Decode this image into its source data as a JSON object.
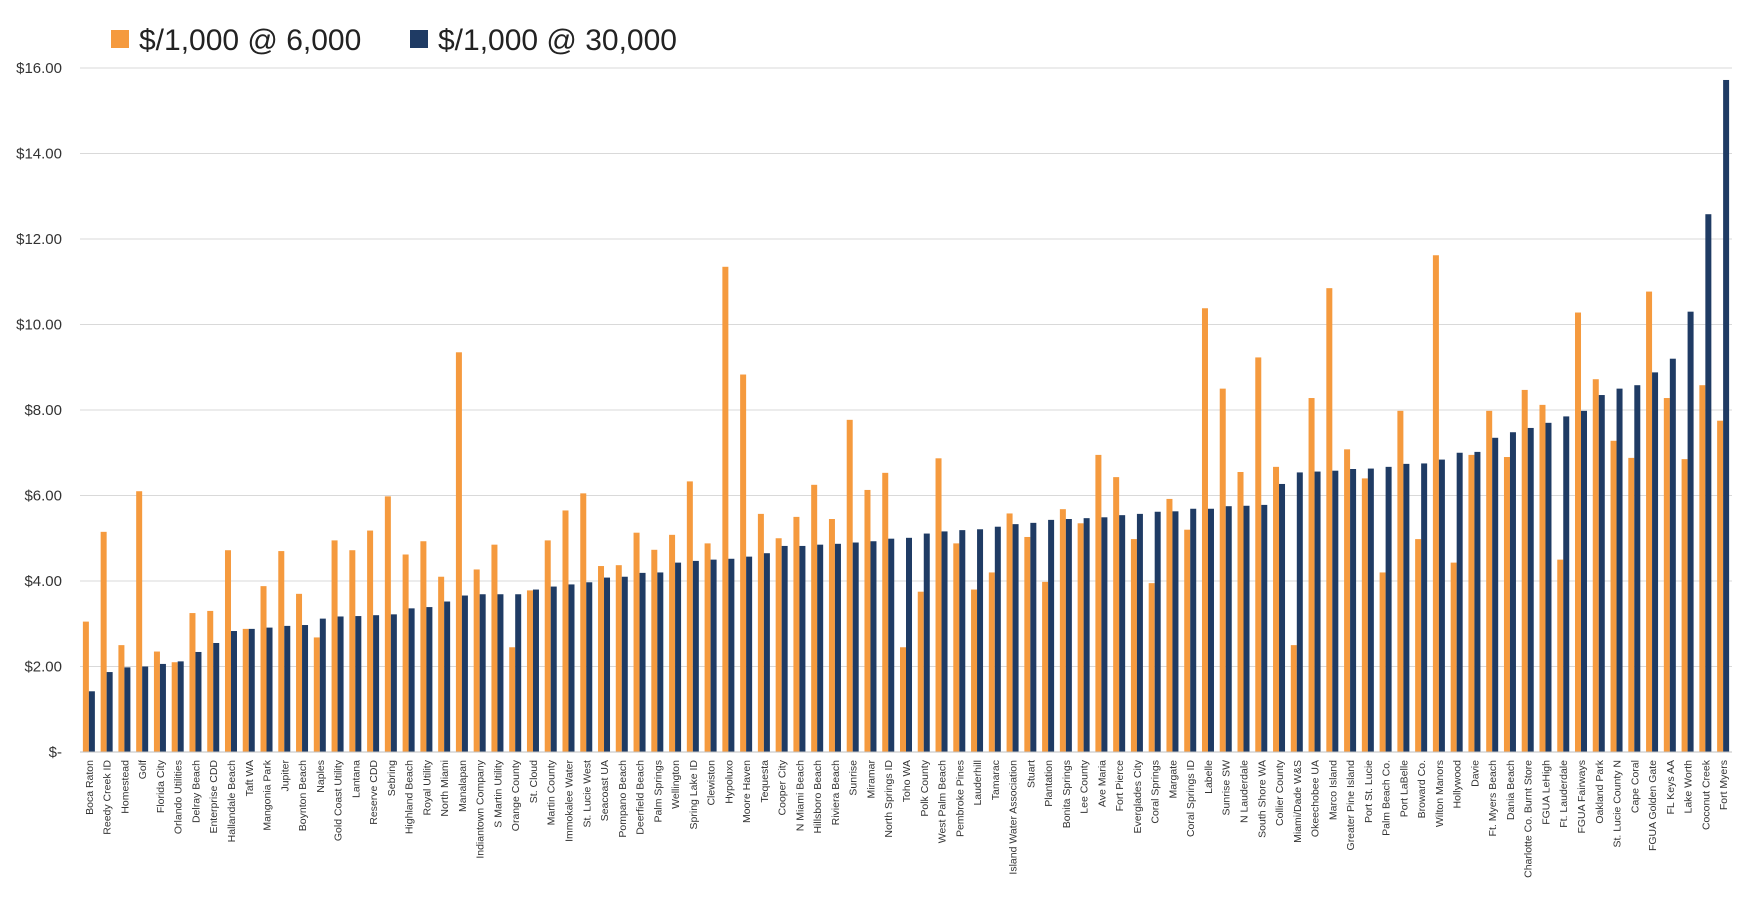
{
  "chart_data": {
    "type": "bar",
    "series": [
      {
        "name": "$/1,000 @ 6,000",
        "color": "#F59A3E",
        "values": [
          3.05,
          5.15,
          2.5,
          6.1,
          2.35,
          2.1,
          3.25,
          3.3,
          4.72,
          2.88,
          3.88,
          4.7,
          3.7,
          2.68,
          4.95,
          4.72,
          5.18,
          5.98,
          4.62,
          4.93,
          4.1,
          9.35,
          4.27,
          4.85,
          2.45,
          3.78,
          4.95,
          5.65,
          6.05,
          4.35,
          4.37,
          5.13,
          4.73,
          5.08,
          6.33,
          4.88,
          11.35,
          8.83,
          5.57,
          5.0,
          5.5,
          6.25,
          5.45,
          7.77,
          6.13,
          6.53,
          2.45,
          3.75,
          6.87,
          4.88,
          3.8,
          4.2,
          5.58,
          5.03,
          3.98,
          5.68,
          5.35,
          6.95,
          6.43,
          4.98,
          3.95,
          5.92,
          5.2,
          10.38,
          8.5,
          6.55,
          9.23,
          6.67,
          2.5,
          8.28,
          10.85,
          7.08,
          6.4,
          4.2,
          7.98,
          4.98,
          11.62,
          4.43,
          6.95,
          7.98,
          6.9,
          8.47,
          8.12,
          4.5,
          10.28,
          8.72,
          7.28,
          6.88,
          10.77,
          8.28,
          6.85,
          8.58,
          7.75
        ]
      },
      {
        "name": "$/1,000 @ 30,000",
        "color": "#1F3B64",
        "values": [
          1.42,
          1.87,
          1.98,
          2.0,
          2.06,
          2.12,
          2.34,
          2.55,
          2.83,
          2.88,
          2.91,
          2.95,
          2.97,
          3.12,
          3.17,
          3.18,
          3.2,
          3.22,
          3.36,
          3.39,
          3.52,
          3.66,
          3.69,
          3.69,
          3.69,
          3.8,
          3.87,
          3.92,
          3.97,
          4.08,
          4.1,
          4.19,
          4.2,
          4.43,
          4.47,
          4.5,
          4.52,
          4.57,
          4.65,
          4.82,
          4.82,
          4.85,
          4.87,
          4.9,
          4.93,
          4.99,
          5.01,
          5.11,
          5.16,
          5.19,
          5.21,
          5.27,
          5.33,
          5.36,
          5.43,
          5.45,
          5.47,
          5.49,
          5.54,
          5.57,
          5.62,
          5.63,
          5.69,
          5.69,
          5.75,
          5.76,
          5.78,
          6.27,
          6.54,
          6.56,
          6.58,
          6.62,
          6.63,
          6.67,
          6.74,
          6.75,
          6.84,
          7.0,
          7.02,
          7.35,
          7.48,
          7.58,
          7.7,
          7.85,
          7.98,
          8.35,
          8.5,
          8.58,
          8.88,
          9.2,
          10.3,
          12.58,
          15.72
        ]
      }
    ],
    "categories": [
      "Boca Raton",
      "Reedy Creek ID",
      "Homestead",
      "Golf",
      "Florida City",
      "Orlando Utilities",
      "Delray Beach",
      "Enterprise CDD",
      "Hallandale Beach",
      "Taft WA",
      "Mangonia Park",
      "Jupiter",
      "Boynton Beach",
      "Naples",
      "Gold Coast Utility",
      "Lantana",
      "Reserve CDD",
      "Sebring",
      "Highland Beach",
      "Royal Utility",
      "North Miami",
      "Manalapan",
      "Indiantown Company",
      "S Martin Utility",
      "Orange County",
      "St. Cloud",
      "Martin County",
      "Immokalee Water",
      "St. Lucie West",
      "Seacoast UA",
      "Pompano Beach",
      "Deerfield Beach",
      "Palm Springs",
      "Wellington",
      "Spring Lake ID",
      "Clewiston",
      "Hypoluxo",
      "Moore Haven",
      "Tequesta",
      "Cooper City",
      "N Miami Beach",
      "Hillsboro Beach",
      "Riviera Beach",
      "Sunrise",
      "Miramar",
      "North Springs ID",
      "Toho WA",
      "Polk County",
      "West Palm Beach",
      "Pembroke Pines",
      "Lauderhill",
      "Tamarac",
      "Island Water Association",
      "Stuart",
      "Plantation",
      "Bonita Springs",
      "Lee County",
      "Ave Maria",
      "Fort Pierce",
      "Everglades City",
      "Coral Springs",
      "Margate",
      "Coral Springs ID",
      "Labelle",
      "Sunrise SW",
      "N Lauderdale",
      "South Shore WA",
      "Collier County",
      "Miami/Dade W&S",
      "Okeechobee UA",
      "Marco Island",
      "Greater Pine Island",
      "Port St. Lucie",
      "Palm Beach Co.",
      "Port LaBelle",
      "Broward Co.",
      "Wilton Manors",
      "Hollywood",
      "Davie",
      "Ft. Myers Beach",
      "Dania Beach",
      "Charlotte Co. Burnt Store",
      "FGUA LeHigh",
      "Ft. Lauderdale",
      "FGUA Fairways",
      "Oakland Park",
      "St. Lucie County N",
      "Cape Coral",
      "FGUA Golden Gate",
      "FL Keys AA",
      "Lake Worth",
      "Coconut Creek",
      "Fort Myers"
    ],
    "y_ticks": [
      "$-",
      "$2.00",
      "$4.00",
      "$6.00",
      "$8.00",
      "$10.00",
      "$12.00",
      "$14.00",
      "$16.00"
    ],
    "ylim": [
      0,
      16
    ],
    "grid": true,
    "legend_position": "top-left",
    "title": "",
    "xlabel": "",
    "ylabel": ""
  }
}
